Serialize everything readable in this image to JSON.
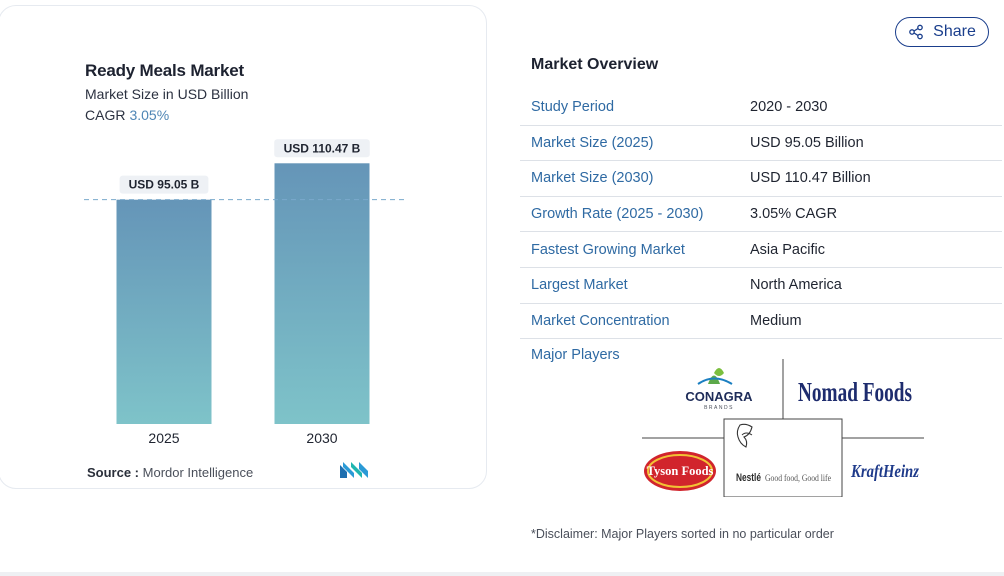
{
  "chart_data": {
    "type": "bar",
    "title": "Ready Meals Market",
    "subtitle": "Market Size in USD Billion",
    "cagr_label": "CAGR",
    "cagr_value": "3.05%",
    "categories": [
      "2025",
      "2030"
    ],
    "values": [
      95.05,
      110.47
    ],
    "data_labels": [
      "USD 95.05 B",
      "USD 110.47 B"
    ],
    "ylim": [
      0,
      125
    ],
    "reference_line": 95.05,
    "bar_color_top": "#6595b8",
    "bar_color_bottom": "#7ec3c9",
    "source_label": "Source :",
    "source_value": "Mordor Intelligence"
  },
  "share": {
    "label": "Share",
    "icon": "share-icon"
  },
  "overview": {
    "title": "Market Overview",
    "rows": [
      {
        "label": "Study Period",
        "value": "2020 - 2030"
      },
      {
        "label": "Market Size (2025)",
        "value": "USD 95.05 Billion"
      },
      {
        "label": "Market Size (2030)",
        "value": "USD 110.47 Billion"
      },
      {
        "label": "Growth Rate (2025 - 2030)",
        "value": "3.05% CAGR"
      },
      {
        "label": "Fastest Growing Market",
        "value": "Asia Pacific"
      },
      {
        "label": "Largest Market",
        "value": "North America"
      },
      {
        "label": "Market Concentration",
        "value": "Medium"
      }
    ]
  },
  "major_players": {
    "label": "Major Players",
    "logos": [
      "CONAGRA",
      "BRANDS",
      "Nomad Foods",
      "Tyson Foods",
      "Nestlé",
      "Good food, Good life",
      "KraftHeinz"
    ]
  },
  "disclaimer": "*Disclaimer: Major Players sorted in no particular order"
}
